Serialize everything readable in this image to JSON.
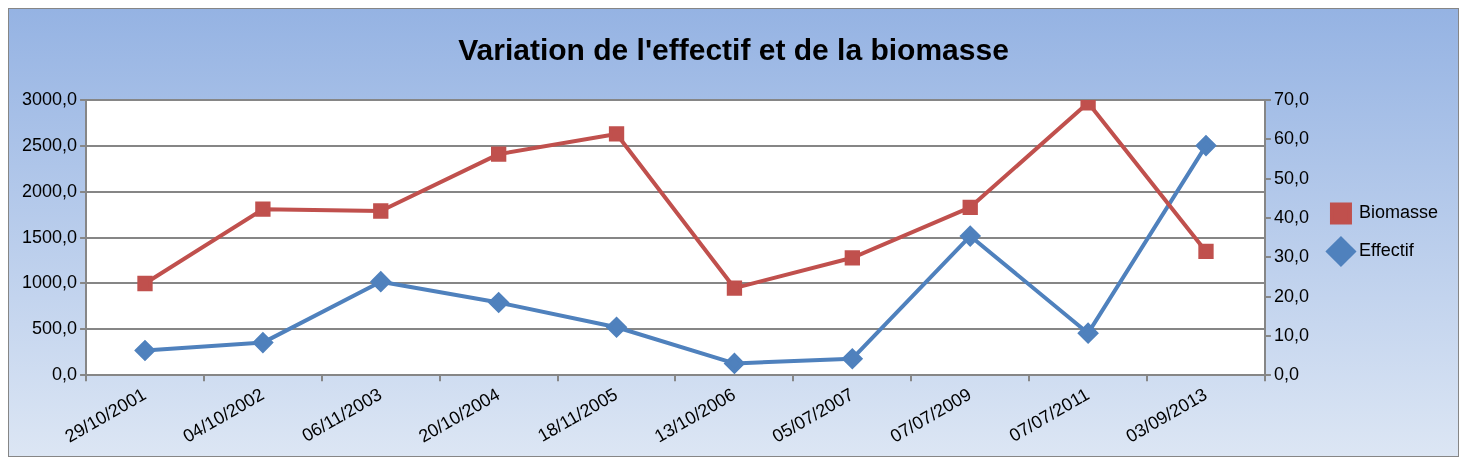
{
  "chart_data": {
    "type": "line",
    "title": "Variation de l'effectif et de la biomasse",
    "categories": [
      "29/10/2001",
      "04/10/2002",
      "06/11/2003",
      "20/10/2004",
      "18/11/2005",
      "13/10/2006",
      "05/07/2007",
      "07/07/2009",
      "07/07/2011",
      "03/09/2013"
    ],
    "series": [
      {
        "name": "Biomasse",
        "color": "#c0504d",
        "marker": "square",
        "values": [
          1000,
          1810,
          1790,
          2410,
          2630,
          950,
          1280,
          1830,
          2970,
          1350
        ]
      },
      {
        "name": "Effectif",
        "color": "#4f81bd",
        "marker": "diamond",
        "axis": "y2",
        "values": [
          6.3,
          8.3,
          23.8,
          18.5,
          12.2,
          3.0,
          4.2,
          35.4,
          10.7,
          58.4
        ]
      }
    ],
    "ylim": [
      0,
      3000
    ],
    "yticks": [
      {
        "value": 0,
        "label": "0,0"
      },
      {
        "value": 500,
        "label": "500,0"
      },
      {
        "value": 1000,
        "label": "1000,0"
      },
      {
        "value": 1500,
        "label": "1500,0"
      },
      {
        "value": 2000,
        "label": "2000,0"
      },
      {
        "value": 2500,
        "label": "2500,0"
      },
      {
        "value": 3000,
        "label": "3000,0"
      }
    ],
    "y2lim": [
      0,
      70
    ],
    "y2ticks": [
      {
        "value": 0,
        "label": "0,0"
      },
      {
        "value": 10,
        "label": "10,0"
      },
      {
        "value": 20,
        "label": "20,0"
      },
      {
        "value": 30,
        "label": "30,0"
      },
      {
        "value": 40,
        "label": "40,0"
      },
      {
        "value": 50,
        "label": "50,0"
      },
      {
        "value": 60,
        "label": "60,0"
      },
      {
        "value": 70,
        "label": "70,0"
      }
    ],
    "grid": "y",
    "legend": "right",
    "line_style": "solid"
  }
}
